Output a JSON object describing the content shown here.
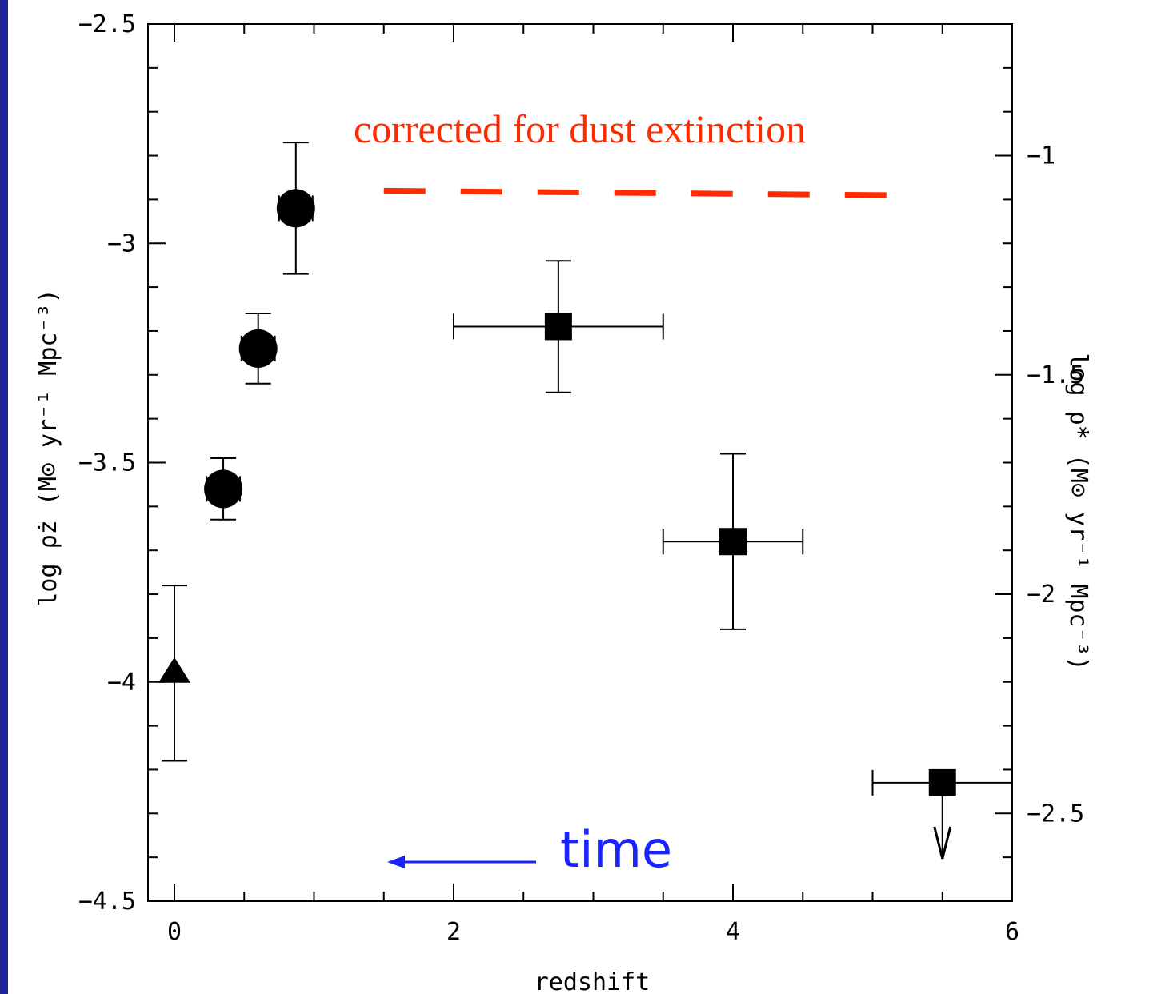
{
  "chart_data": {
    "type": "scatter",
    "xlabel": "redshift",
    "ylabel": "log ρ̇z (M⊙ yr⁻¹ Mpc⁻³)",
    "ylabel_right": "log ρ̇* (M⊙ yr⁻¹ Mpc⁻³)",
    "xlim": [
      0,
      6
    ],
    "ylim": [
      -4.5,
      -2.5
    ],
    "ylim_right": [
      -2.7,
      -0.7
    ],
    "x_ticks": [
      "0",
      "2",
      "4",
      "6"
    ],
    "y_ticks": [
      "-2.5",
      "-3",
      "-3.5",
      "-4",
      "-4.5"
    ],
    "y_ticks_right": [
      "-1",
      "-1.5",
      "-2",
      "-2.5"
    ],
    "grid": false,
    "series": [
      {
        "marker": "triangle",
        "points": [
          {
            "x": 0.0,
            "y": -3.98,
            "yerr_lo": 0.2,
            "yerr_hi": 0.2
          }
        ]
      },
      {
        "marker": "circle",
        "points": [
          {
            "x": 0.35,
            "y": -3.56,
            "xerr": 0.12,
            "yerr_lo": 0.07,
            "yerr_hi": 0.07
          },
          {
            "x": 0.6,
            "y": -3.24,
            "xerr": 0.12,
            "yerr_lo": 0.08,
            "yerr_hi": 0.08
          },
          {
            "x": 0.87,
            "y": -2.92,
            "xerr": 0.12,
            "yerr_lo": 0.15,
            "yerr_hi": 0.15
          }
        ]
      },
      {
        "marker": "square",
        "points": [
          {
            "x": 2.75,
            "y": -3.19,
            "xlo": 2.0,
            "xhi": 3.5,
            "yerr_lo": 0.15,
            "yerr_hi": 0.15
          },
          {
            "x": 4.0,
            "y": -3.68,
            "xlo": 3.5,
            "xhi": 4.5,
            "yerr_lo": 0.2,
            "yerr_hi": 0.2
          },
          {
            "x": 5.5,
            "y": -4.23,
            "xlo": 5.0,
            "xhi": 6.0,
            "upper_limit": true
          }
        ]
      }
    ],
    "annotations": [
      {
        "text": "corrected for dust extinction",
        "color": "#ff2a00"
      },
      {
        "text": "time",
        "color": "#1a22ff",
        "arrow": "left"
      }
    ],
    "dashed_line": {
      "x": [
        1.5,
        5.1
      ],
      "y": [
        -2.88,
        -2.89
      ],
      "color": "#ff2a00"
    }
  }
}
